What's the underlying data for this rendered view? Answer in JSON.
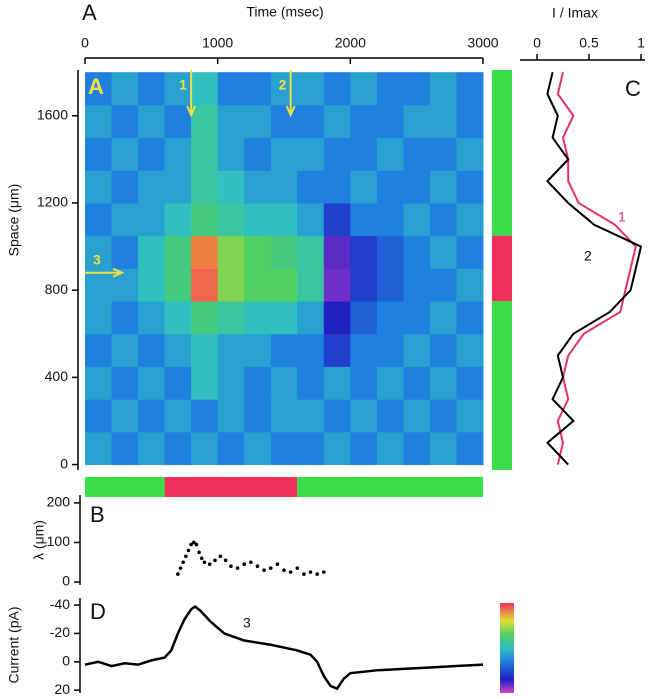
{
  "chart_data": [
    {
      "type": "heatmap",
      "figure_label": "A",
      "panel_label": "A",
      "xlabel": "Time (msec)",
      "ylabel": "Space (μm)",
      "xlim": [
        0,
        3000
      ],
      "xticks": [
        0,
        1000,
        2000,
        3000
      ],
      "ylim": [
        -25,
        1810
      ],
      "yticks": [
        0,
        400,
        800,
        1200,
        1600
      ],
      "x": [
        100,
        300,
        500,
        700,
        900,
        1100,
        1300,
        1500,
        1700,
        1900,
        2100,
        2300,
        2500,
        2700,
        2900
      ],
      "y": [
        75,
        225,
        375,
        525,
        675,
        825,
        975,
        1125,
        1275,
        1425,
        1575,
        1725
      ],
      "z": [
        [
          0.35,
          0.3,
          0.35,
          0.3,
          0.35,
          0.3,
          0.35,
          0.3,
          0.3,
          0.35,
          0.3,
          0.35,
          0.3,
          0.35,
          0.3
        ],
        [
          0.3,
          0.35,
          0.3,
          0.35,
          0.3,
          0.35,
          0.3,
          0.35,
          0.35,
          0.3,
          0.35,
          0.3,
          0.35,
          0.3,
          0.35
        ],
        [
          0.35,
          0.3,
          0.35,
          0.3,
          0.4,
          0.35,
          0.3,
          0.35,
          0.3,
          0.35,
          0.3,
          0.35,
          0.3,
          0.35,
          0.3
        ],
        [
          0.3,
          0.35,
          0.3,
          0.35,
          0.4,
          0.35,
          0.35,
          0.3,
          0.3,
          0.2,
          0.3,
          0.3,
          0.35,
          0.3,
          0.35
        ],
        [
          0.35,
          0.3,
          0.35,
          0.4,
          0.5,
          0.45,
          0.4,
          0.4,
          0.35,
          0.15,
          0.25,
          0.3,
          0.3,
          0.35,
          0.3
        ],
        [
          0.35,
          0.35,
          0.4,
          0.5,
          0.9,
          0.6,
          0.55,
          0.55,
          0.45,
          0.08,
          0.2,
          0.25,
          0.3,
          0.3,
          0.35
        ],
        [
          0.35,
          0.3,
          0.4,
          0.5,
          0.85,
          0.6,
          0.55,
          0.5,
          0.45,
          0.1,
          0.2,
          0.25,
          0.3,
          0.35,
          0.3
        ],
        [
          0.3,
          0.35,
          0.35,
          0.4,
          0.5,
          0.45,
          0.4,
          0.4,
          0.35,
          0.2,
          0.3,
          0.3,
          0.35,
          0.3,
          0.35
        ],
        [
          0.35,
          0.3,
          0.35,
          0.35,
          0.45,
          0.4,
          0.35,
          0.35,
          0.3,
          0.3,
          0.35,
          0.3,
          0.3,
          0.35,
          0.3
        ],
        [
          0.3,
          0.35,
          0.3,
          0.35,
          0.45,
          0.35,
          0.3,
          0.35,
          0.35,
          0.3,
          0.3,
          0.35,
          0.3,
          0.3,
          0.35
        ],
        [
          0.35,
          0.3,
          0.35,
          0.3,
          0.45,
          0.35,
          0.35,
          0.3,
          0.3,
          0.35,
          0.3,
          0.3,
          0.35,
          0.35,
          0.3
        ],
        [
          0.3,
          0.35,
          0.3,
          0.35,
          0.4,
          0.3,
          0.3,
          0.35,
          0.35,
          0.3,
          0.35,
          0.3,
          0.3,
          0.35,
          0.3
        ]
      ],
      "arrows": [
        {
          "label": "1",
          "x": 800
        },
        {
          "label": "2",
          "x": 1550
        },
        {
          "label": "3",
          "y": 880
        }
      ],
      "time_bar": [
        {
          "start": 0,
          "end": 600,
          "color": "#3ddc4a"
        },
        {
          "start": 600,
          "end": 1600,
          "color": "#f0305a"
        },
        {
          "start": 1600,
          "end": 3000,
          "color": "#3ddc4a"
        }
      ],
      "space_bar": [
        {
          "start": -25,
          "end": 750,
          "color": "#3ddc4a"
        },
        {
          "start": 750,
          "end": 1050,
          "color": "#f0305a"
        },
        {
          "start": 1050,
          "end": 1810,
          "color": "#3ddc4a"
        }
      ]
    },
    {
      "type": "profile",
      "panel_label": "C",
      "xlabel": "I / Imax",
      "xlim": [
        0,
        1
      ],
      "xticks": [
        0,
        0.5,
        1
      ],
      "space": [
        0,
        100,
        200,
        300,
        400,
        500,
        600,
        700,
        800,
        900,
        1000,
        1100,
        1200,
        1300,
        1400,
        1500,
        1600,
        1700,
        1800
      ],
      "series": [
        {
          "name": "1",
          "color": "#e8306a",
          "values": [
            0.2,
            0.25,
            0.2,
            0.3,
            0.25,
            0.3,
            0.45,
            0.8,
            0.85,
            0.9,
            0.95,
            0.75,
            0.4,
            0.3,
            0.3,
            0.25,
            0.35,
            0.2,
            0.25
          ]
        },
        {
          "name": "2",
          "color": "#000000",
          "values": [
            0.3,
            0.1,
            0.35,
            0.15,
            0.25,
            0.2,
            0.35,
            0.7,
            0.9,
            0.95,
            1,
            0.55,
            0.3,
            0.1,
            0.3,
            0.15,
            0.2,
            0.1,
            0.15
          ]
        }
      ]
    },
    {
      "type": "scatter",
      "panel_label": "B",
      "ylabel": "λ (μm)",
      "ylim": [
        -5,
        220
      ],
      "yticks": [
        0,
        100,
        200
      ],
      "x": [
        700,
        720,
        740,
        760,
        780,
        800,
        820,
        840,
        860,
        880,
        900,
        940,
        980,
        1020,
        1060,
        1100,
        1150,
        1200,
        1250,
        1300,
        1350,
        1400,
        1450,
        1500,
        1550,
        1600,
        1650,
        1700,
        1750,
        1800
      ],
      "values": [
        20,
        35,
        50,
        65,
        80,
        95,
        100,
        95,
        75,
        60,
        50,
        45,
        55,
        65,
        55,
        40,
        35,
        45,
        50,
        40,
        30,
        35,
        45,
        30,
        25,
        35,
        20,
        25,
        20,
        25
      ]
    },
    {
      "type": "line",
      "panel_label": "D",
      "ylabel": "Current (pA)",
      "label": "3",
      "y_inverted": true,
      "ylim": [
        -45,
        22
      ],
      "yticks": [
        -40,
        -20,
        0,
        20
      ],
      "x": [
        0,
        100,
        200,
        300,
        400,
        500,
        600,
        650,
        700,
        750,
        800,
        830,
        870,
        950,
        1050,
        1200,
        1400,
        1600,
        1700,
        1750,
        1800,
        1850,
        1900,
        1950,
        2000,
        2200,
        2400,
        2600,
        2800,
        3000
      ],
      "values": [
        2,
        0,
        3,
        1,
        2,
        -1,
        -3,
        -8,
        -20,
        -30,
        -37,
        -39,
        -36,
        -28,
        -20,
        -15,
        -12,
        -8,
        -5,
        0,
        10,
        17,
        19,
        12,
        8,
        6,
        5,
        4,
        3,
        2
      ]
    }
  ]
}
